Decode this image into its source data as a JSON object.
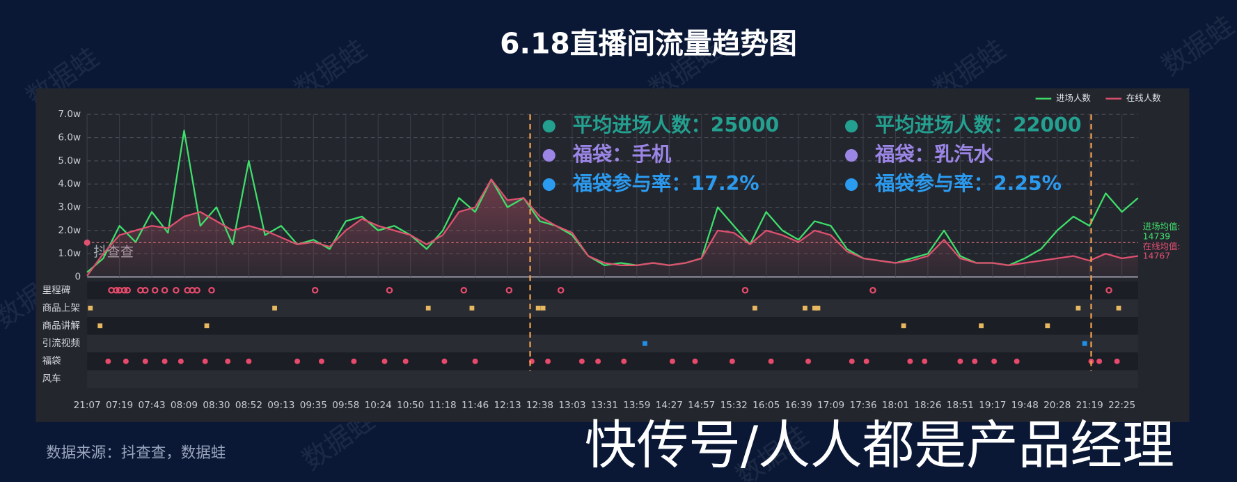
{
  "chart_data": {
    "type": "line",
    "title": "6.18直播间流量趋势图",
    "source": "数据来源：抖查查，数据蛙",
    "credit": "快传号/人人都是产品经理",
    "watermark": "数据蛙",
    "logo": "抖查查",
    "categories": [
      "21:07",
      null,
      "07:19",
      null,
      "07:43",
      null,
      "08:09",
      null,
      "08:30",
      null,
      "08:52",
      null,
      "09:13",
      null,
      "09:35",
      null,
      "09:58",
      null,
      "10:24",
      null,
      "10:50",
      null,
      "11:18",
      null,
      "11:46",
      null,
      "12:13",
      null,
      "12:38",
      null,
      "13:03",
      null,
      "13:31",
      null,
      "13:59",
      null,
      "14:27",
      null,
      "14:57",
      null,
      "15:32",
      null,
      "16:05",
      null,
      "16:39",
      null,
      "17:09",
      null,
      "17:36",
      null,
      "18:01",
      null,
      "18:26",
      null,
      "18:51",
      null,
      "19:17",
      null,
      "19:48",
      null,
      "20:28",
      null,
      "21:19",
      null,
      "22:25",
      null
    ],
    "series": [
      {
        "name": "进场人数",
        "color": "#3ee06a",
        "values": [
          2000,
          8000,
          22000,
          15000,
          28000,
          19000,
          63000,
          22000,
          30000,
          14000,
          50000,
          18000,
          22000,
          14000,
          16000,
          12000,
          24000,
          26000,
          20000,
          22000,
          18000,
          12000,
          20000,
          34000,
          28000,
          42000,
          30000,
          34000,
          24000,
          22000,
          18000,
          9000,
          5000,
          6000,
          5000,
          6000,
          5000,
          6000,
          8000,
          30000,
          22000,
          14000,
          28000,
          20000,
          16000,
          24000,
          22000,
          12000,
          8000,
          7000,
          6000,
          8000,
          10000,
          20000,
          9000,
          6000,
          6000,
          5000,
          8000,
          12000,
          20000,
          26000,
          22000,
          36000,
          28000,
          34000
        ]
      },
      {
        "name": "在线人数",
        "color": "#e0506f",
        "values": [
          500,
          10000,
          18000,
          20000,
          22000,
          21000,
          26000,
          28000,
          24000,
          20000,
          22000,
          20000,
          17000,
          14000,
          15000,
          13000,
          20000,
          25000,
          22000,
          20000,
          18000,
          14000,
          18000,
          28000,
          30000,
          42000,
          33000,
          34000,
          26000,
          22000,
          19000,
          9000,
          6000,
          5000,
          5000,
          6000,
          5000,
          6000,
          8000,
          20000,
          19000,
          14000,
          20000,
          18000,
          15000,
          20000,
          18000,
          11000,
          8000,
          7000,
          6000,
          7000,
          9000,
          16000,
          8000,
          6000,
          6000,
          5000,
          6000,
          7000,
          8000,
          9000,
          7000,
          10000,
          8000,
          9000
        ]
      }
    ],
    "ylim": [
      0,
      70000
    ],
    "yticks": [
      {
        "value": 0,
        "label": "0"
      },
      {
        "value": 10000,
        "label": "1.0w"
      },
      {
        "value": 20000,
        "label": "2.0w"
      },
      {
        "value": 30000,
        "label": "3.0w"
      },
      {
        "value": 40000,
        "label": "4.0w"
      },
      {
        "value": 50000,
        "label": "5.0w"
      },
      {
        "value": 60000,
        "label": "6.0w"
      },
      {
        "value": 70000,
        "label": "7.0w"
      }
    ],
    "grid": true,
    "legend": "top-right",
    "reference_lines": [
      {
        "label": "进场均值:",
        "value": 14739,
        "color": "#3ee06a"
      },
      {
        "label": "在线均值:",
        "value": 14767,
        "color": "#e0506f"
      }
    ],
    "event_lines": [
      27.4,
      62.1
    ],
    "annotations": [
      {
        "x": 27.4,
        "items": [
          {
            "text": "平均进场人数：25000",
            "color": "#23a08f"
          },
          {
            "text": "福袋：手机",
            "color": "#9b86e6"
          },
          {
            "text": "福袋参与率：17.2%",
            "color": "#2b9bf0"
          }
        ]
      },
      {
        "x": 46.1,
        "items": [
          {
            "text": "平均进场人数：22000",
            "color": "#23a08f"
          },
          {
            "text": "福袋：乳汽水",
            "color": "#9b86e6"
          },
          {
            "text": "福袋参与率：2.25%",
            "color": "#2b9bf0"
          }
        ]
      }
    ],
    "lanes": [
      {
        "name": "里程碑",
        "color": "#e84a6b",
        "shape": "ring",
        "x": [
          1.5,
          1.8,
          2.0,
          2.3,
          2.5,
          3.3,
          3.6,
          4.2,
          4.8,
          5.5,
          6.2,
          6.5,
          6.8,
          7.7,
          14.1,
          18.7,
          23.3,
          26.1,
          29.3,
          40.7,
          48.6,
          63.2
        ]
      },
      {
        "name": "商品上架",
        "color": "#e8b860",
        "shape": "square",
        "x": [
          0.2,
          11.6,
          21.1,
          23.8,
          27.9,
          28.2,
          41.3,
          44.4,
          45.0,
          45.2,
          61.3,
          63.8
        ]
      },
      {
        "name": "商品讲解",
        "color": "#e8b860",
        "shape": "square",
        "x": [
          0.8,
          7.4,
          50.5,
          55.3,
          59.4
        ]
      },
      {
        "name": "引流视频",
        "color": "#1f8fe8",
        "shape": "square",
        "x": [
          34.5,
          61.7
        ]
      },
      {
        "name": "福袋",
        "color": "#e84a6b",
        "shape": "dot",
        "x": [
          1.3,
          2.4,
          3.6,
          4.8,
          5.8,
          7.3,
          8.7,
          10.0,
          13.0,
          14.5,
          16.5,
          18.4,
          19.7,
          22.1,
          24.0,
          27.5,
          28.5,
          30.6,
          31.6,
          33.2,
          36.2,
          37.6,
          39.9,
          42.3,
          44.6,
          47.3,
          48.2,
          50.9,
          51.8,
          54.0,
          54.9,
          56.1,
          57.5,
          62.1,
          62.6,
          63.7
        ]
      },
      {
        "name": "风车",
        "color": "#8fd0ff",
        "shape": "dot",
        "x": []
      }
    ]
  }
}
